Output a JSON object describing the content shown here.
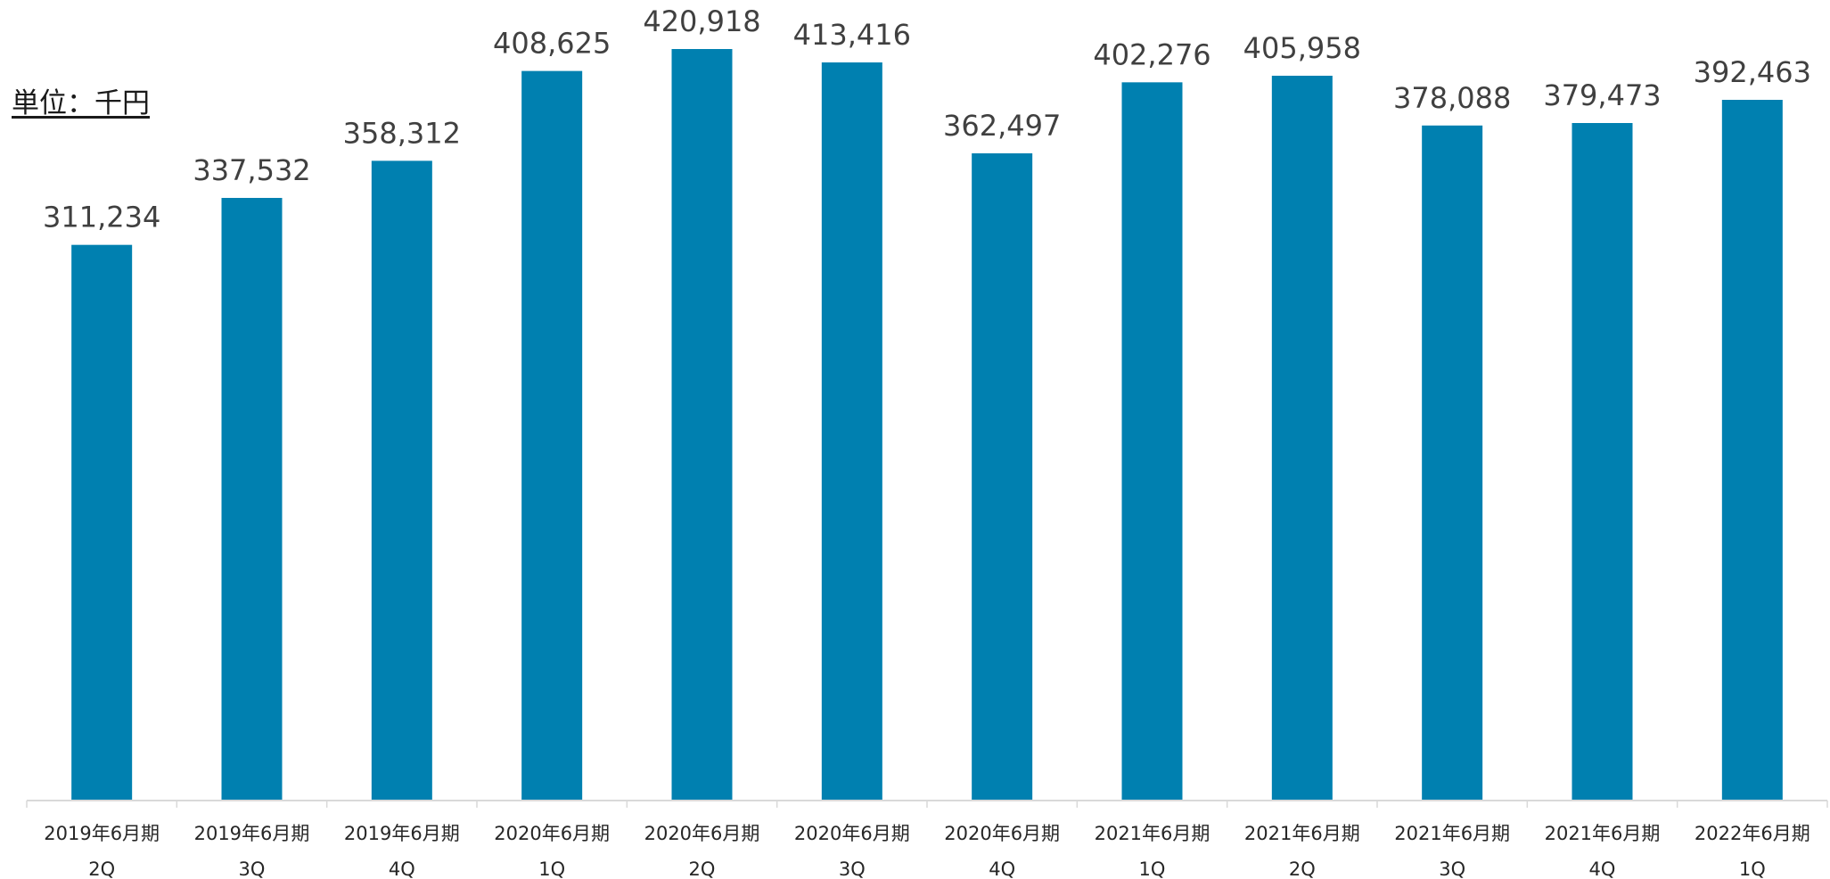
{
  "unit_label": "単位：千円",
  "chart_data": {
    "type": "bar",
    "title": "",
    "xlabel": "",
    "ylabel": "",
    "categories": [
      [
        "2019年6月期",
        "2Q"
      ],
      [
        "2019年6月期",
        "3Q"
      ],
      [
        "2019年6月期",
        "4Q"
      ],
      [
        "2020年6月期",
        "1Q"
      ],
      [
        "2020年6月期",
        "2Q"
      ],
      [
        "2020年6月期",
        "3Q"
      ],
      [
        "2020年6月期",
        "4Q"
      ],
      [
        "2021年6月期",
        "1Q"
      ],
      [
        "2021年6月期",
        "2Q"
      ],
      [
        "2021年6月期",
        "3Q"
      ],
      [
        "2021年6月期",
        "4Q"
      ],
      [
        "2022年6月期",
        "1Q"
      ]
    ],
    "values": [
      311234,
      337532,
      358312,
      408625,
      420918,
      413416,
      362497,
      402276,
      405958,
      378088,
      379473,
      392463
    ],
    "data_labels": [
      "311,234",
      "337,532",
      "358,312",
      "408,625",
      "420,918",
      "413,416",
      "362,497",
      "402,276",
      "405,958",
      "378,088",
      "379,473",
      "392,463"
    ],
    "ylim": [
      0,
      420918
    ],
    "grid": false,
    "legend": "none",
    "colors": {
      "bar": "#0080B0",
      "axis": "#d9d9d9",
      "label": "#404040",
      "tick": "#262626"
    }
  }
}
